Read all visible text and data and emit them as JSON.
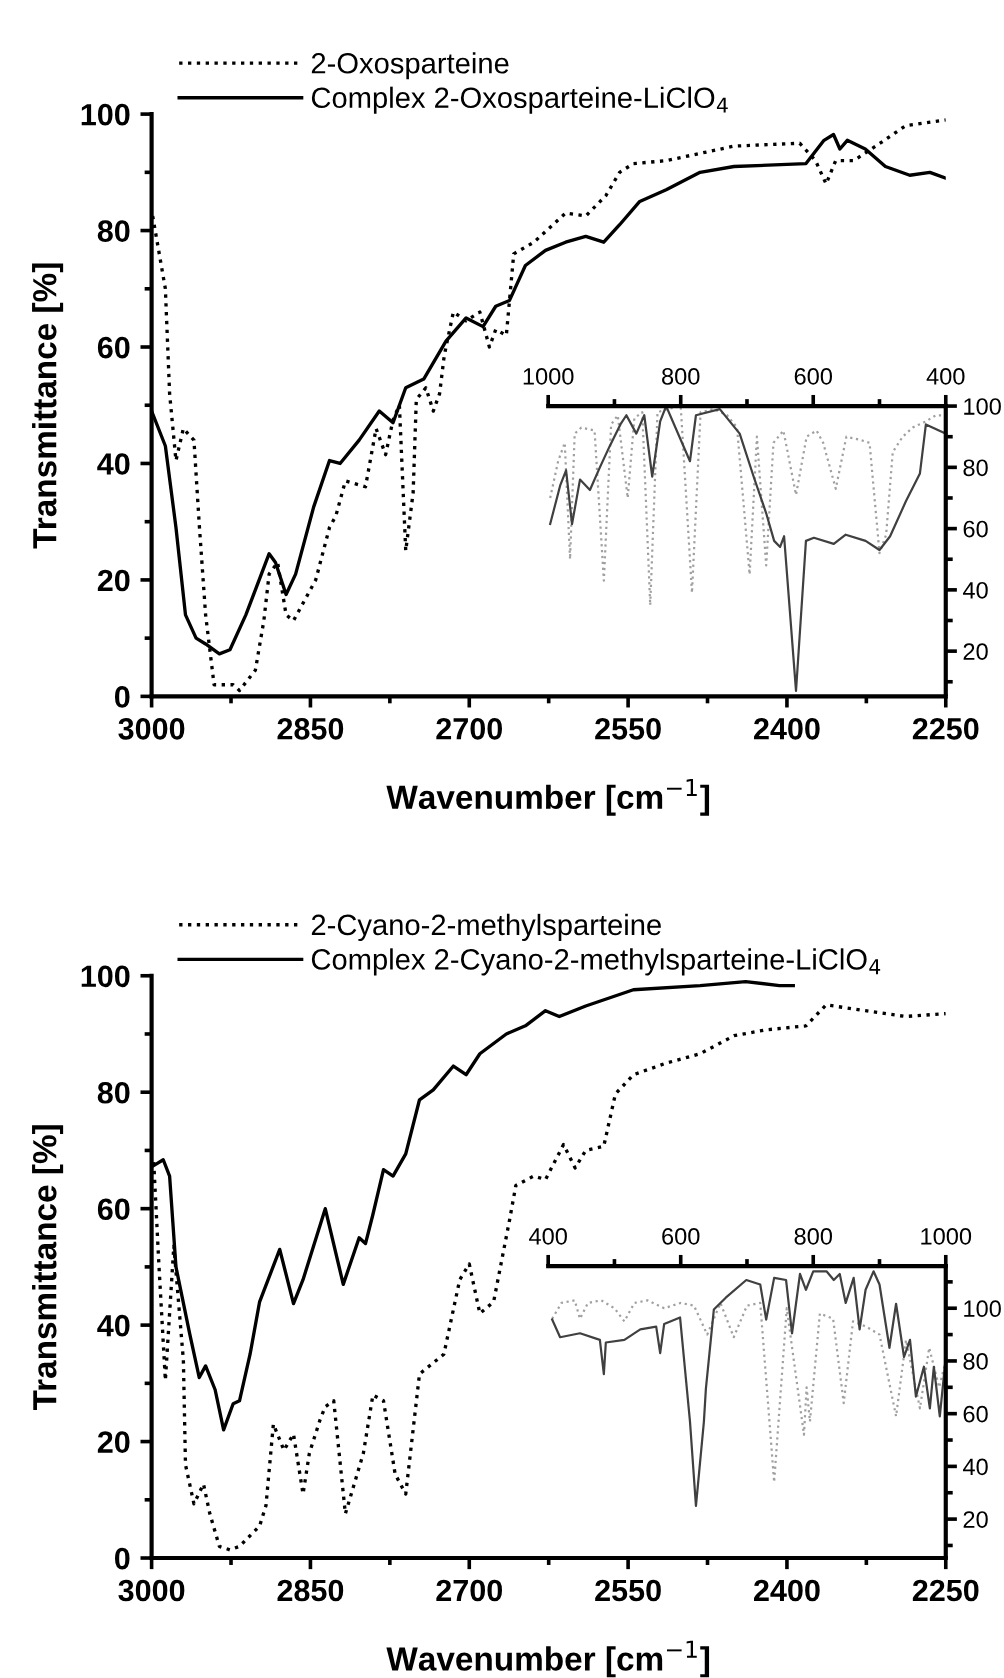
{
  "chart_data": [
    {
      "type": "line",
      "xlabel": "Wavenumber [cm$^{−1}$]",
      "ylabel": "Transmittance [%]",
      "xlim": [
        3000,
        2250
      ],
      "xticks": [
        3000,
        {
          "value": 2925,
          "label": null
        },
        2850,
        {
          "value": 2775,
          "label": null
        },
        2700,
        {
          "value": 2625,
          "label": null
        },
        2550,
        {
          "value": 2475,
          "label": null
        },
        2400,
        {
          "value": 2325,
          "label": null
        },
        2250
      ],
      "ylim": [
        0,
        100
      ],
      "yticks": [
        0,
        {
          "value": 10,
          "label": null
        },
        20,
        {
          "value": 30,
          "label": null
        },
        40,
        {
          "value": 50,
          "label": null
        },
        60,
        {
          "value": 70,
          "label": null
        },
        80,
        {
          "value": 90,
          "label": null
        },
        100
      ],
      "legend": "top left",
      "series": [
        {
          "name": "2-Oxosparteine",
          "color": "#000000",
          "line_style": "dotted",
          "x": [
            2999,
            2987,
            2983,
            2977,
            2970,
            2960,
            2955,
            2949,
            2941,
            2923,
            2917,
            2902,
            2894,
            2889,
            2881,
            2873,
            2866,
            2845,
            2832,
            2826,
            2817,
            2798,
            2788,
            2779,
            2772,
            2766,
            2760,
            2753,
            2750,
            2741,
            2734,
            2728,
            2724,
            2722,
            2715,
            2703,
            2690,
            2681,
            2675,
            2665,
            2658,
            2639,
            2609,
            2590,
            2571,
            2558,
            2545,
            2514,
            2450,
            2388,
            2373,
            2363,
            2354,
            2337,
            2312,
            2288,
            2250
          ],
          "values": [
            82.5,
            70,
            52,
            40.5,
            46,
            44,
            29.5,
            14,
            2,
            2,
            1,
            4.5,
            13,
            21,
            23,
            14,
            13,
            20,
            29,
            31,
            37,
            36,
            46,
            41.5,
            47.5,
            50,
            25,
            35,
            51,
            53,
            49,
            52,
            58,
            60,
            66,
            64.5,
            66,
            60,
            63,
            62,
            76,
            78,
            83,
            82.5,
            86,
            90,
            91.5,
            92,
            94.5,
            95,
            92,
            88,
            92,
            92,
            95,
            98,
            99
          ]
        },
        {
          "name": "Complex 2-Oxosparteine-LiClO$_{4}$",
          "color": "#000000",
          "line_style": "solid",
          "x": [
            3000,
            2987,
            2977,
            2968,
            2958,
            2949,
            2936,
            2926,
            2911,
            2889,
            2883,
            2873,
            2864,
            2847,
            2832,
            2822,
            2804,
            2785,
            2772,
            2760,
            2743,
            2722,
            2703,
            2687,
            2675,
            2662,
            2647,
            2628,
            2609,
            2590,
            2573,
            2558,
            2539,
            2514,
            2482,
            2450,
            2382,
            2365,
            2356,
            2350,
            2343,
            2326,
            2307,
            2284,
            2265,
            2250
          ],
          "values": [
            49,
            43,
            29,
            14,
            10,
            9,
            7.3,
            8,
            14,
            24.5,
            23,
            17.5,
            21,
            32.5,
            40.5,
            40,
            44,
            49,
            47,
            53,
            54.5,
            61,
            65,
            63.5,
            67,
            68,
            74,
            76.6,
            78,
            79,
            78,
            81,
            85,
            87,
            90,
            91,
            91.5,
            95.5,
            96.5,
            94,
            95.5,
            94,
            91,
            89.5,
            90,
            89
          ]
        }
      ]
    },
    {
      "type": "line",
      "xlim": [
        1000,
        400
      ],
      "xticks": [
        1000,
        {
          "value": 900,
          "label": null
        },
        800,
        {
          "value": 700,
          "label": null
        },
        600,
        {
          "value": 500,
          "label": null
        },
        400
      ],
      "ylim": [
        6,
        100
      ],
      "yticks": [
        {
          "value": 10,
          "label": null
        },
        20,
        {
          "value": 30,
          "label": null
        },
        40,
        {
          "value": 50,
          "label": null
        },
        60,
        {
          "value": 70,
          "label": null
        },
        80,
        {
          "value": 90,
          "label": null
        },
        100
      ],
      "series": [
        {
          "color": "#a0a0a0",
          "line_style": "dotted",
          "x": [
            997,
            985,
            975,
            967,
            960,
            950,
            930,
            916,
            905,
            895,
            880,
            870,
            858,
            846,
            835,
            820,
            800,
            783,
            770,
            750,
            730,
            715,
            696,
            685,
            671,
            660,
            645,
            626,
            610,
            595,
            585,
            566,
            550,
            530,
            515,
            500,
            490,
            480,
            465,
            450,
            430,
            415,
            400
          ],
          "values": [
            70,
            82,
            88,
            50,
            91,
            93,
            92,
            43,
            94,
            97,
            70,
            96,
            98,
            35,
            98,
            99,
            100,
            39,
            98,
            99,
            97,
            93,
            45,
            90,
            48,
            88,
            92,
            71,
            90,
            92,
            88,
            73,
            90,
            89,
            88,
            52,
            58,
            85,
            90,
            93,
            95,
            97,
            97
          ]
        },
        {
          "color": "#404040",
          "line_style": "solid",
          "x": [
            997,
            982,
            973,
            964,
            952,
            937,
            922,
            907,
            891,
            882,
            867,
            855,
            843,
            831,
            822,
            786,
            777,
            741,
            711,
            690,
            671,
            659,
            650,
            644,
            626,
            611,
            599,
            569,
            551,
            521,
            500,
            484,
            460,
            439,
            430,
            400
          ],
          "values": [
            61.5,
            74,
            79,
            61.5,
            76,
            72.6,
            80,
            87,
            94,
            97,
            91,
            97,
            77,
            95,
            100,
            82,
            97,
            99,
            91,
            77,
            65,
            56,
            54,
            57.5,
            7,
            56,
            57,
            55,
            58,
            56,
            53,
            57.5,
            69,
            78,
            94,
            91
          ]
        }
      ]
    },
    {
      "type": "line",
      "xlabel": "Wavenumber [cm$^{−1}$]",
      "ylabel": "Transmittance [%]",
      "xlim": [
        3000,
        2250
      ],
      "xticks": [
        3000,
        {
          "value": 2925,
          "label": null
        },
        2850,
        {
          "value": 2775,
          "label": null
        },
        2700,
        {
          "value": 2625,
          "label": null
        },
        2550,
        {
          "value": 2475,
          "label": null
        },
        2400,
        {
          "value": 2325,
          "label": null
        },
        2250
      ],
      "ylim": [
        0,
        100
      ],
      "yticks": [
        0,
        {
          "value": 10,
          "label": null
        },
        20,
        {
          "value": 30,
          "label": null
        },
        40,
        {
          "value": 50,
          "label": null
        },
        60,
        {
          "value": 70,
          "label": null
        },
        80,
        {
          "value": 90,
          "label": null
        },
        100
      ],
      "legend": "top left",
      "series": [
        {
          "name": "2-Cyano-2-methylsparteine",
          "color": "#000000",
          "line_style": "dotted",
          "x": [
            2998,
            2993,
            2987,
            2979,
            2970,
            2968,
            2960,
            2951,
            2945,
            2936,
            2926,
            2917,
            2898,
            2892,
            2885,
            2875,
            2866,
            2857,
            2851,
            2841,
            2836,
            2828,
            2817,
            2800,
            2791,
            2781,
            2770,
            2760,
            2747,
            2724,
            2709,
            2700,
            2690,
            2677,
            2662,
            2656,
            2639,
            2628,
            2611,
            2600,
            2590,
            2573,
            2562,
            2545,
            2514,
            2482,
            2450,
            2420,
            2382,
            2363,
            2326,
            2288,
            2250
          ],
          "values": [
            68,
            50,
            30.5,
            53.6,
            34,
            16,
            9.3,
            12.7,
            7.6,
            2,
            1.4,
            2,
            5.5,
            9,
            23,
            18.5,
            21.3,
            11,
            18,
            23.7,
            26,
            27,
            7.6,
            18,
            28,
            27,
            14.4,
            11,
            31.6,
            35,
            47.8,
            50.5,
            42,
            44,
            58,
            64,
            65.6,
            65,
            71,
            67,
            70,
            70.7,
            79.7,
            83,
            85,
            86.6,
            89.7,
            90.7,
            91.4,
            95,
            94,
            93,
            93.5
          ]
        },
        {
          "name": "Complex 2-Cyano-2-methylsparteine-LiClO$_{4}$",
          "color": "#000000",
          "line_style": "solid",
          "x": [
            2998,
            2989,
            2983,
            2977,
            2964,
            2955,
            2949,
            2940,
            2932,
            2923,
            2917,
            2907,
            2898,
            2879,
            2866,
            2857,
            2836,
            2819,
            2804,
            2798,
            2791,
            2781,
            2772,
            2760,
            2747,
            2734,
            2715,
            2703,
            2690,
            2665,
            2647,
            2628,
            2615,
            2590,
            2545,
            2482,
            2439,
            2407,
            2394
          ],
          "values": [
            67.4,
            68.4,
            65.6,
            50,
            38.5,
            31,
            33,
            28.9,
            22,
            26.5,
            27,
            35,
            44,
            53,
            43.7,
            47.8,
            60,
            47,
            55,
            54,
            59,
            66.7,
            65.6,
            69.4,
            78.7,
            80.4,
            84.5,
            83,
            86.6,
            90,
            91.4,
            94,
            93,
            94.8,
            97.6,
            98.3,
            99,
            98.3,
            98.3
          ]
        }
      ]
    },
    {
      "type": "line",
      "xlim": [
        400,
        1000
      ],
      "xticks": [
        400,
        {
          "value": 500,
          "label": null
        },
        600,
        {
          "value": 700,
          "label": null
        },
        800,
        {
          "value": 900,
          "label": null
        },
        1000
      ],
      "ylim": [
        6,
        116
      ],
      "yticks": [
        {
          "value": 10,
          "label": null
        },
        20,
        {
          "value": 30,
          "label": null
        },
        40,
        {
          "value": 50,
          "label": null
        },
        60,
        {
          "value": 70,
          "label": null
        },
        80,
        {
          "value": 90,
          "label": null
        },
        100,
        {
          "value": 110,
          "label": null
        }
      ],
      "series": [
        {
          "color": "#a0a0a0",
          "line_style": "dotted",
          "x": [
            406,
            420,
            440,
            448,
            460,
            480,
            500,
            515,
            530,
            550,
            575,
            600,
            620,
            640,
            660,
            680,
            700,
            720,
            741,
            760,
            786,
            790,
            795,
            810,
            830,
            846,
            860,
            880,
            900,
            925,
            940,
            961,
            975,
            990,
            1000
          ],
          "values": [
            96,
            102,
            103,
            96,
            102,
            103,
            100,
            95,
            102,
            103,
            100,
            102,
            101,
            90,
            102,
            89,
            101,
            102,
            34,
            100,
            52,
            70,
            57,
            98,
            96,
            64,
            95,
            93,
            90,
            59,
            88,
            62,
            85,
            70,
            80
          ]
        },
        {
          "color": "#404040",
          "line_style": "solid",
          "x": [
            406,
            418,
            448,
            478,
            484,
            487,
            515,
            539,
            563,
            569,
            575,
            599,
            614,
            623,
            635,
            638,
            650,
            668,
            699,
            720,
            729,
            741,
            759,
            768,
            780,
            789,
            800,
            820,
            831,
            840,
            849,
            861,
            870,
            879,
            891,
            900,
            915,
            925,
            937,
            946,
            955,
            967,
            976,
            982,
            991,
            1000
          ],
          "values": [
            95.7,
            89,
            90.5,
            88,
            75,
            87,
            88,
            92,
            93,
            83,
            94,
            96.5,
            57,
            25,
            57,
            69.5,
            99.5,
            104,
            110.7,
            109,
            95.7,
            111.5,
            110.7,
            90.5,
            113,
            107,
            114,
            114,
            110.7,
            113,
            102,
            111.5,
            92,
            107,
            114,
            109,
            85,
            101.7,
            81.5,
            88,
            66.5,
            77.8,
            62,
            77.8,
            59,
            81.5
          ]
        }
      ]
    }
  ]
}
